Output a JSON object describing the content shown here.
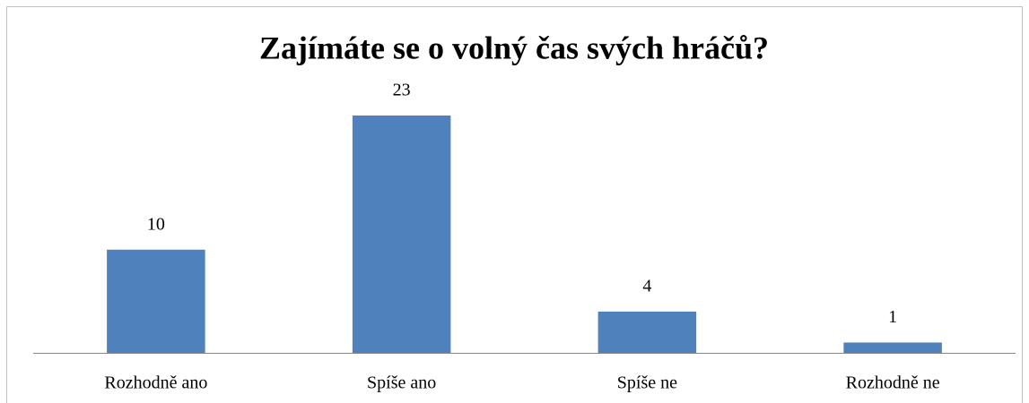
{
  "chart_data": {
    "type": "bar",
    "title": "Zajímáte se o volný čas svých hráčů?",
    "categories": [
      "Rozhodně ano",
      "Spíše ano",
      "Spíše ne",
      "Rozhodně ne"
    ],
    "values": [
      10,
      23,
      4,
      1
    ],
    "color": "#4f81bd"
  }
}
